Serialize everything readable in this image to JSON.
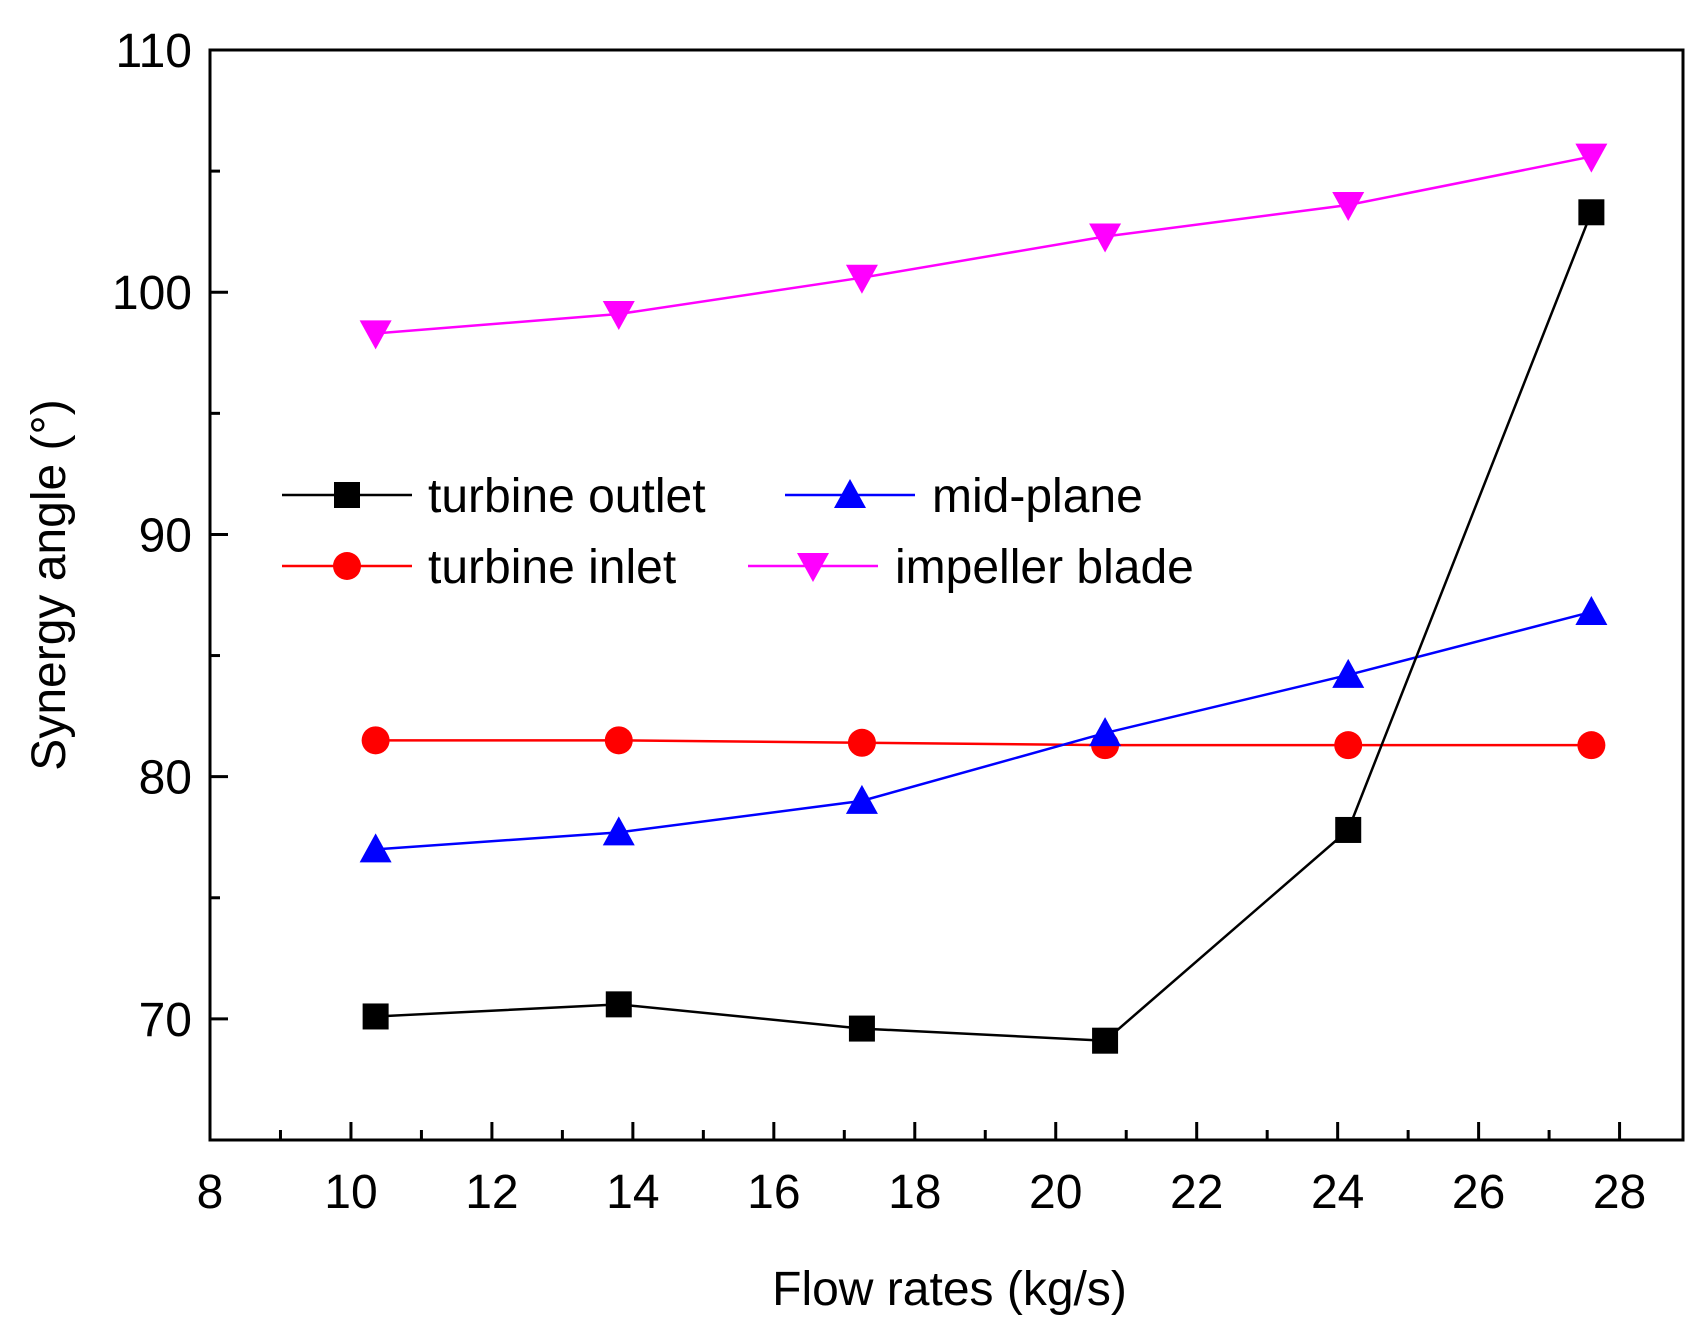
{
  "chart_data": {
    "type": "line",
    "title": "",
    "xlabel": "Flow rates  (kg/s)",
    "ylabel": "Synergy angle (°)",
    "xlim": [
      8,
      28.9
    ],
    "ylim": [
      65,
      110
    ],
    "x_ticks": [
      8,
      10,
      12,
      14,
      16,
      18,
      20,
      22,
      24,
      26,
      28
    ],
    "x_tick_labels": [
      "8",
      "10",
      "12",
      "14",
      "16",
      "18",
      "20",
      "22",
      "24",
      "26",
      "28"
    ],
    "y_ticks": [
      70,
      80,
      90,
      100,
      110
    ],
    "y_tick_labels": [
      "70",
      "80",
      "90",
      "100",
      "110"
    ],
    "x_minor_step": 1,
    "y_minor_step": 5,
    "grid": false,
    "legend_position": "center-left",
    "series": [
      {
        "name": "turbine outlet",
        "color": "#000000",
        "marker": "square",
        "x": [
          10.35,
          13.8,
          17.25,
          20.7,
          24.15,
          27.6
        ],
        "values": [
          70.1,
          70.6,
          69.6,
          69.1,
          77.8,
          103.3
        ]
      },
      {
        "name": "mid-plane",
        "color": "#0000ff",
        "marker": "triangle-up",
        "x": [
          10.35,
          13.8,
          17.25,
          20.7,
          24.15,
          27.6
        ],
        "values": [
          77.0,
          77.7,
          79.0,
          81.8,
          84.2,
          86.8
        ]
      },
      {
        "name": "turbine inlet",
        "color": "#ff0000",
        "marker": "circle",
        "x": [
          10.35,
          13.8,
          17.25,
          20.7,
          24.15,
          27.6
        ],
        "values": [
          81.5,
          81.5,
          81.4,
          81.3,
          81.3,
          81.3
        ]
      },
      {
        "name": "impeller blade",
        "color": "#ff00ff",
        "marker": "triangle-down",
        "x": [
          10.35,
          13.8,
          17.25,
          20.7,
          24.15,
          27.6
        ],
        "values": [
          98.3,
          99.1,
          100.6,
          102.3,
          103.6,
          105.6
        ]
      }
    ]
  }
}
